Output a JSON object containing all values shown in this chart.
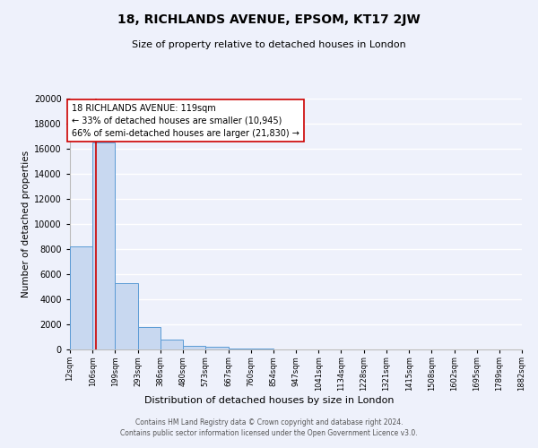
{
  "title": "18, RICHLANDS AVENUE, EPSOM, KT17 2JW",
  "subtitle": "Size of property relative to detached houses in London",
  "xlabel": "Distribution of detached houses by size in London",
  "ylabel": "Number of detached properties",
  "bar_color": "#c8d8f0",
  "bar_edge_color": "#5b9bd5",
  "bin_edges": [
    12,
    106,
    199,
    293,
    386,
    480,
    573,
    667,
    760,
    854,
    947,
    1041,
    1134,
    1228,
    1321,
    1415,
    1508,
    1602,
    1695,
    1789,
    1882
  ],
  "bin_labels": [
    "12sqm",
    "106sqm",
    "199sqm",
    "293sqm",
    "386sqm",
    "480sqm",
    "573sqm",
    "667sqm",
    "760sqm",
    "854sqm",
    "947sqm",
    "1041sqm",
    "1134sqm",
    "1228sqm",
    "1321sqm",
    "1415sqm",
    "1508sqm",
    "1602sqm",
    "1695sqm",
    "1789sqm",
    "1882sqm"
  ],
  "bar_heights": [
    8200,
    16500,
    5300,
    1800,
    800,
    300,
    200,
    100,
    50,
    0,
    0,
    0,
    0,
    0,
    0,
    0,
    0,
    0,
    0,
    0
  ],
  "property_size": 119,
  "red_line_color": "#cc0000",
  "annotation_title": "18 RICHLANDS AVENUE: 119sqm",
  "annotation_line1": "← 33% of detached houses are smaller (10,945)",
  "annotation_line2": "66% of semi-detached houses are larger (21,830) →",
  "annotation_box_color": "#ffffff",
  "annotation_box_edge": "#cc0000",
  "ylim": [
    0,
    20000
  ],
  "yticks": [
    0,
    2000,
    4000,
    6000,
    8000,
    10000,
    12000,
    14000,
    16000,
    18000,
    20000
  ],
  "background_color": "#eef1fb",
  "grid_color": "#ffffff",
  "footer_line1": "Contains HM Land Registry data © Crown copyright and database right 2024.",
  "footer_line2": "Contains public sector information licensed under the Open Government Licence v3.0."
}
